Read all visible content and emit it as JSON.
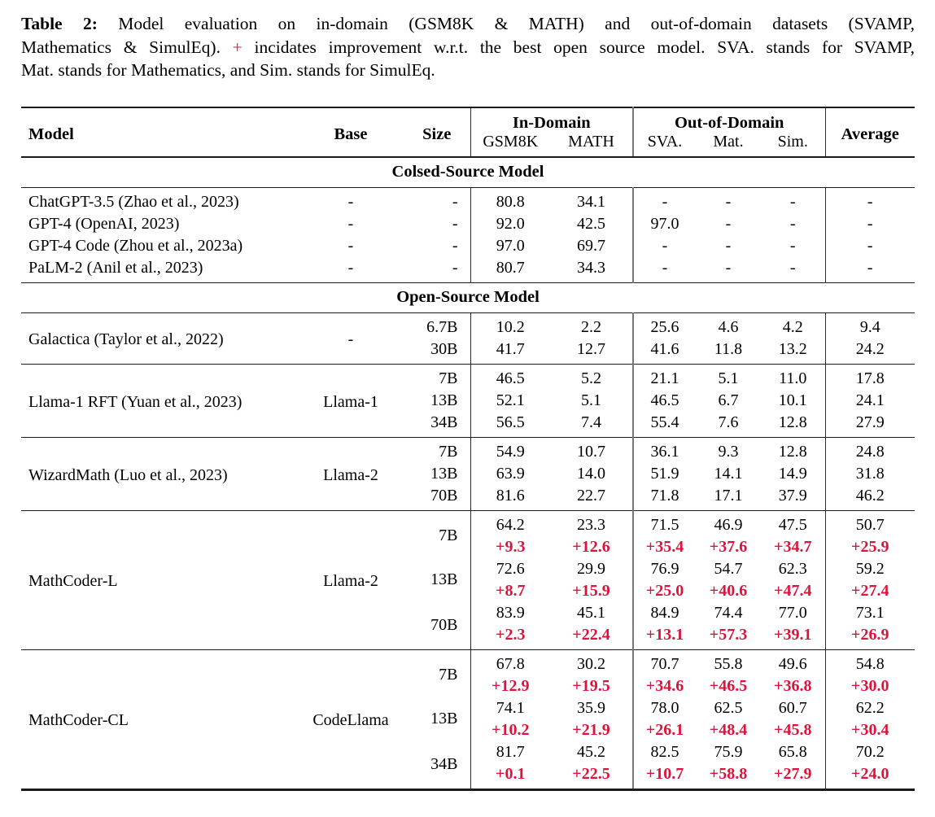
{
  "colors": {
    "improvement_red": "#DC143C",
    "text": "#000000",
    "rule": "#1b1b1b"
  },
  "caption": {
    "lines": [
      {
        "justify": true,
        "segments": [
          {
            "text": "Table 2:",
            "style": "bold"
          },
          {
            "text": "Model evaluation on in-domain (GSM8K & MATH) and out-of-domain datasets (SVAMP,",
            "style": ""
          }
        ]
      },
      {
        "justify": true,
        "segments": [
          {
            "text": "Mathematics & SimulEq).",
            "style": ""
          },
          {
            "text": "+",
            "style": "red"
          },
          {
            "text": "incidates improvement w.r.t. the best open source model. SVA. stands for SVAMP,",
            "style": ""
          }
        ]
      },
      {
        "justify": false,
        "segments": [
          {
            "text": "Mat. stands for Mathematics, and Sim. stands for SimulEq.",
            "style": ""
          }
        ]
      }
    ]
  },
  "table": {
    "headers": {
      "model": "Model",
      "base": "Base",
      "size": "Size",
      "in_domain": "In-Domain",
      "out_of_domain": "Out-of-Domain",
      "average": "Average",
      "sub": [
        "GSM8K",
        "MATH",
        "SVA.",
        "Mat.",
        "Sim."
      ]
    },
    "sections": [
      {
        "title": "Colsed-Source Model",
        "rules": false,
        "groups": [
          {
            "model": "ChatGPT-3.5 (Zhao et al., 2023)",
            "base": "-",
            "rows": [
              {
                "size": "-",
                "values": [
                  "80.8",
                  "34.1",
                  "-",
                  "-",
                  "-",
                  "-"
                ]
              }
            ]
          },
          {
            "model": "GPT-4 (OpenAI, 2023)",
            "base": "-",
            "rows": [
              {
                "size": "-",
                "values": [
                  "92.0",
                  "42.5",
                  "97.0",
                  "-",
                  "-",
                  "-"
                ]
              }
            ]
          },
          {
            "model": "GPT-4 Code (Zhou et al., 2023a)",
            "base": "-",
            "rows": [
              {
                "size": "-",
                "values": [
                  "97.0",
                  "69.7",
                  "-",
                  "-",
                  "-",
                  "-"
                ]
              }
            ]
          },
          {
            "model": "PaLM-2 (Anil et al., 2023)",
            "base": "-",
            "rows": [
              {
                "size": "-",
                "values": [
                  "80.7",
                  "34.3",
                  "-",
                  "-",
                  "-",
                  "-"
                ]
              }
            ]
          }
        ]
      },
      {
        "title": "Open-Source Model",
        "rules": true,
        "groups": [
          {
            "model": "Galactica (Taylor et al., 2022)",
            "base": "-",
            "rows": [
              {
                "size": "6.7B",
                "values": [
                  "10.2",
                  "2.2",
                  "25.6",
                  "4.6",
                  "4.2",
                  "9.4"
                ]
              },
              {
                "size": "30B",
                "values": [
                  "41.7",
                  "12.7",
                  "41.6",
                  "11.8",
                  "13.2",
                  "24.2"
                ]
              }
            ]
          },
          {
            "model": "Llama-1 RFT (Yuan et al., 2023)",
            "base": "Llama-1",
            "rows": [
              {
                "size": "7B",
                "values": [
                  "46.5",
                  "5.2",
                  "21.1",
                  "5.1",
                  "11.0",
                  "17.8"
                ]
              },
              {
                "size": "13B",
                "values": [
                  "52.1",
                  "5.1",
                  "46.5",
                  "6.7",
                  "10.1",
                  "24.1"
                ]
              },
              {
                "size": "34B",
                "values": [
                  "56.5",
                  "7.4",
                  "55.4",
                  "7.6",
                  "12.8",
                  "27.9"
                ]
              }
            ]
          },
          {
            "model": "WizardMath (Luo et al., 2023)",
            "base": "Llama-2",
            "rows": [
              {
                "size": "7B",
                "values": [
                  "54.9",
                  "10.7",
                  "36.1",
                  "9.3",
                  "12.8",
                  "24.8"
                ]
              },
              {
                "size": "13B",
                "values": [
                  "63.9",
                  "14.0",
                  "51.9",
                  "14.1",
                  "14.9",
                  "31.8"
                ]
              },
              {
                "size": "70B",
                "values": [
                  "81.6",
                  "22.7",
                  "71.8",
                  "17.1",
                  "37.9",
                  "46.2"
                ]
              }
            ]
          },
          {
            "model": "MathCoder-L",
            "base": "Llama-2",
            "rows": [
              {
                "size": "7B",
                "values": [
                  "64.2",
                  "23.3",
                  "71.5",
                  "46.9",
                  "47.5",
                  "50.7"
                ],
                "improvements": [
                  "+9.3",
                  "+12.6",
                  "+35.4",
                  "+37.6",
                  "+34.7",
                  "+25.9"
                ]
              },
              {
                "size": "13B",
                "values": [
                  "72.6",
                  "29.9",
                  "76.9",
                  "54.7",
                  "62.3",
                  "59.2"
                ],
                "improvements": [
                  "+8.7",
                  "+15.9",
                  "+25.0",
                  "+40.6",
                  "+47.4",
                  "+27.4"
                ]
              },
              {
                "size": "70B",
                "values": [
                  "83.9",
                  "45.1",
                  "84.9",
                  "74.4",
                  "77.0",
                  "73.1"
                ],
                "improvements": [
                  "+2.3",
                  "+22.4",
                  "+13.1",
                  "+57.3",
                  "+39.1",
                  "+26.9"
                ]
              }
            ]
          },
          {
            "model": "MathCoder-CL",
            "base": "CodeLlama",
            "rows": [
              {
                "size": "7B",
                "values": [
                  "67.8",
                  "30.2",
                  "70.7",
                  "55.8",
                  "49.6",
                  "54.8"
                ],
                "improvements": [
                  "+12.9",
                  "+19.5",
                  "+34.6",
                  "+46.5",
                  "+36.8",
                  "+30.0"
                ]
              },
              {
                "size": "13B",
                "values": [
                  "74.1",
                  "35.9",
                  "78.0",
                  "62.5",
                  "60.7",
                  "62.2"
                ],
                "improvements": [
                  "+10.2",
                  "+21.9",
                  "+26.1",
                  "+48.4",
                  "+45.8",
                  "+30.4"
                ]
              },
              {
                "size": "34B",
                "values": [
                  "81.7",
                  "45.2",
                  "82.5",
                  "75.9",
                  "65.8",
                  "70.2"
                ],
                "improvements": [
                  "+0.1",
                  "+22.5",
                  "+10.7",
                  "+58.8",
                  "+27.9",
                  "+24.0"
                ]
              }
            ]
          }
        ]
      }
    ]
  }
}
